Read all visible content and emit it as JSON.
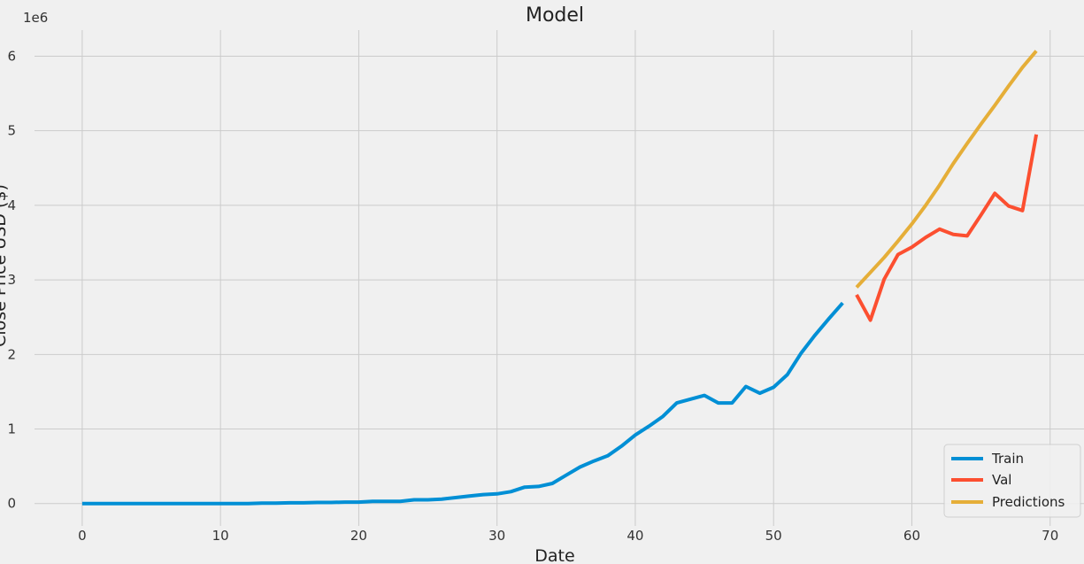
{
  "chart_data": {
    "type": "line",
    "title": "Model",
    "xlabel": "Date",
    "ylabel": "Close Price USD ($)",
    "y_offset_label": "1e6",
    "xlim": [
      -3.45,
      72.45
    ],
    "ylim": [
      -300000,
      6350000
    ],
    "xticks": [
      0,
      10,
      20,
      30,
      40,
      50,
      60,
      70
    ],
    "yticks": [
      0,
      1000000,
      2000000,
      3000000,
      4000000,
      5000000,
      6000000
    ],
    "ytick_labels": [
      "0",
      "1",
      "2",
      "3",
      "4",
      "5",
      "6"
    ],
    "grid": true,
    "legend_position": "lower-right",
    "series": [
      {
        "name": "Train",
        "color": "#008fd5",
        "x": [
          0,
          1,
          2,
          3,
          4,
          5,
          6,
          7,
          8,
          9,
          10,
          11,
          12,
          13,
          14,
          15,
          16,
          17,
          18,
          19,
          20,
          21,
          22,
          23,
          24,
          25,
          26,
          27,
          28,
          29,
          30,
          31,
          32,
          33,
          34,
          35,
          36,
          37,
          38,
          39,
          40,
          41,
          42,
          43,
          44,
          45,
          46,
          47,
          48,
          49,
          50,
          51,
          52,
          53,
          54,
          55
        ],
        "y": [
          0,
          0,
          0,
          0,
          0,
          0,
          0,
          0,
          0,
          0,
          0,
          0,
          0,
          5000,
          5000,
          10000,
          10000,
          15000,
          15000,
          20000,
          20000,
          30000,
          30000,
          30000,
          50000,
          50000,
          60000,
          80000,
          100000,
          120000,
          130000,
          160000,
          220000,
          230000,
          270000,
          380000,
          490000,
          570000,
          640000,
          770000,
          920000,
          1040000,
          1170000,
          1350000,
          1400000,
          1450000,
          1350000,
          1350000,
          1570000,
          1480000,
          1560000,
          1730000,
          2020000,
          2260000,
          2480000,
          2690000
        ]
      },
      {
        "name": "Val",
        "color": "#fc4f30",
        "x": [
          56,
          57,
          58,
          59,
          60,
          61,
          62,
          63,
          64,
          65,
          66,
          67,
          68,
          69
        ],
        "y": [
          2800000,
          2460000,
          3010000,
          3340000,
          3440000,
          3570000,
          3680000,
          3610000,
          3590000,
          3870000,
          4160000,
          3990000,
          3930000,
          4950000
        ]
      },
      {
        "name": "Predictions",
        "color": "#e5ae38",
        "x": [
          56,
          57,
          58,
          59,
          60,
          61,
          62,
          63,
          64,
          65,
          66,
          67,
          68,
          69
        ],
        "y": [
          2900000,
          3100000,
          3300000,
          3520000,
          3750000,
          4000000,
          4270000,
          4560000,
          4830000,
          5090000,
          5340000,
          5600000,
          5850000,
          6070000
        ]
      }
    ]
  }
}
